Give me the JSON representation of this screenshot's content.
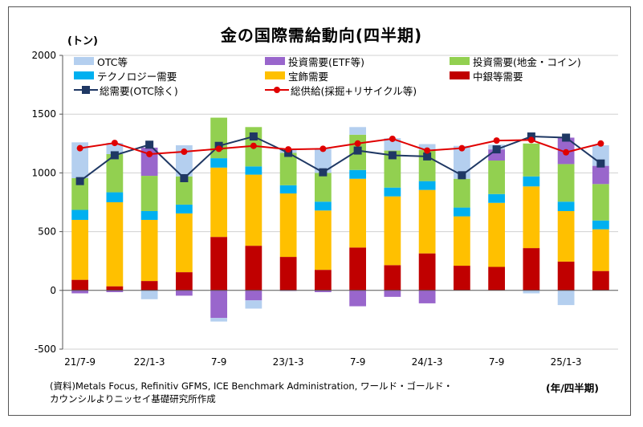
{
  "chart_data": {
    "type": "bar",
    "title": "金の国際需給動向(四半期)",
    "unit_label": "(トン)",
    "x_unit_note": "(年/四半期)",
    "source_lines": [
      "(資料)Metals Focus, Refinitiv GFMS, ICE Benchmark Administration, ワールド・ゴールド・",
      "カウンシルよりニッセイ基礎研究所作成"
    ],
    "ylim": [
      -500,
      2000
    ],
    "yticks": [
      -500,
      0,
      500,
      1000,
      1500,
      2000
    ],
    "categories": [
      "21/7-9",
      "",
      "22/1-3",
      "",
      "7-9",
      "",
      "23/1-3",
      "",
      "7-9",
      "",
      "24/1-3",
      "",
      "7-9",
      "",
      "25/1-3",
      ""
    ],
    "stacked": true,
    "series": [
      {
        "name": "中銀等需要",
        "color": "#C00000",
        "values": [
          90,
          35,
          80,
          155,
          455,
          380,
          285,
          175,
          365,
          215,
          315,
          210,
          200,
          360,
          245,
          165
        ]
      },
      {
        "name": "宝飾需要",
        "color": "#FFC000",
        "values": [
          510,
          715,
          520,
          500,
          590,
          605,
          540,
          505,
          585,
          585,
          540,
          420,
          545,
          525,
          430,
          355
        ]
      },
      {
        "name": "テクノロジー需要",
        "color": "#00B0F0",
        "values": [
          85,
          85,
          75,
          75,
          80,
          70,
          70,
          75,
          75,
          75,
          75,
          75,
          75,
          85,
          80,
          75
        ]
      },
      {
        "name": "投資需要(地金・コイン)",
        "color": "#92D050",
        "values": [
          270,
          325,
          300,
          240,
          345,
          335,
          275,
          245,
          300,
          315,
          265,
          245,
          285,
          280,
          320,
          310
        ]
      },
      {
        "name": "投資需要(ETF等)",
        "color": "#9966CC",
        "values": [
          -25,
          -15,
          240,
          -45,
          -235,
          -85,
          -5,
          -15,
          -135,
          -55,
          -110,
          0,
          95,
          0,
          225,
          155
        ]
      },
      {
        "name": "OTC等",
        "color": "#B4CFEF",
        "values": [
          305,
          95,
          -75,
          265,
          -30,
          -70,
          25,
          205,
          65,
          105,
          50,
          280,
          40,
          -25,
          -125,
          175
        ]
      }
    ],
    "lines": [
      {
        "name": "総需要(OTC除く)",
        "color": "#1F3864",
        "marker": "square",
        "values": [
          930,
          1150,
          1240,
          955,
          1230,
          1310,
          1170,
          1005,
          1190,
          1150,
          1140,
          980,
          1200,
          1310,
          1300,
          1080
        ]
      },
      {
        "name": "総供給(採掘+リサイクル等)",
        "color": "#E00000",
        "marker": "circle",
        "values": [
          1210,
          1255,
          1160,
          1180,
          1205,
          1230,
          1200,
          1205,
          1250,
          1290,
          1190,
          1210,
          1275,
          1280,
          1175,
          1250
        ]
      }
    ],
    "legend": {
      "position": "top",
      "entries": [
        {
          "label": "OTC等",
          "kind": "box",
          "color": "#B4CFEF"
        },
        {
          "label": "投資需要(ETF等)",
          "kind": "box",
          "color": "#9966CC"
        },
        {
          "label": "投資需要(地金・コイン)",
          "kind": "box",
          "color": "#92D050"
        },
        {
          "label": "テクノロジー需要",
          "kind": "box",
          "color": "#00B0F0"
        },
        {
          "label": "宝飾需要",
          "kind": "box",
          "color": "#FFC000"
        },
        {
          "label": "中銀等需要",
          "kind": "box",
          "color": "#C00000"
        },
        {
          "label": "総需要(OTC除く)",
          "kind": "line-square",
          "color": "#1F3864"
        },
        {
          "label": "総供給(採掘+リサイクル等)",
          "kind": "line-circle",
          "color": "#E00000"
        }
      ]
    },
    "grid": "horizontal"
  }
}
